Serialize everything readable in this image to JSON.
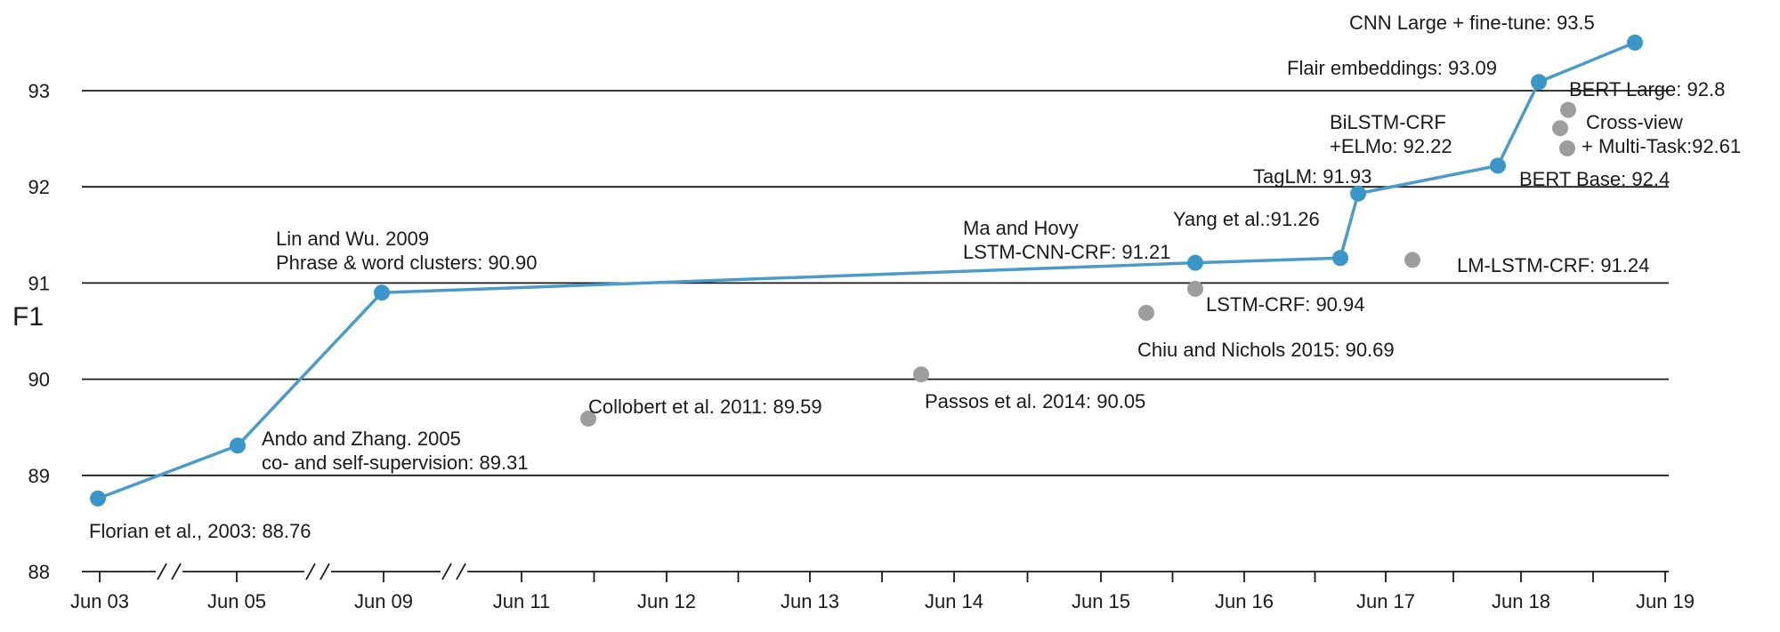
{
  "chart_data": {
    "type": "line",
    "ylabel": "F1",
    "xlabel": "",
    "title": "",
    "ylim": [
      88,
      93.5
    ],
    "yticks": [
      88,
      89,
      90,
      91,
      92,
      93
    ],
    "grid": "horizontal",
    "x_axis_note": "broken axis between Jun 03 and Jun 11",
    "xticks": [
      "Jun 03",
      "Jun 05",
      "Jun 09",
      "Jun 11",
      "Jun 12",
      "Jun 13",
      "Jun 14",
      "Jun 15",
      "Jun 16",
      "Jun 17",
      "Jun 18",
      "Jun 19"
    ],
    "series": [
      {
        "role": "state-of-the-art",
        "color": "#3a96c9",
        "points": [
          {
            "x": "Jun 03",
            "y": 88.76,
            "label": [
              "Florian et al., 2003: 88.76"
            ]
          },
          {
            "x": "Jun 05",
            "y": 89.31,
            "label": [
              "Ando and Zhang. 2005",
              "co- and self-supervision: 89.31"
            ]
          },
          {
            "x": "Jun 09",
            "y": 90.9,
            "label": [
              "Lin and Wu. 2009",
              "Phrase & word clusters: 90.90"
            ]
          },
          {
            "x": "Mar 16",
            "y": 91.21,
            "label": [
              "Ma and Hovy",
              "LSTM-CNN-CRF: 91.21"
            ]
          },
          {
            "x": "Feb 17",
            "y": 91.26,
            "label": [
              "Yang et al.:91.26"
            ]
          },
          {
            "x": "Apr 17",
            "y": 91.93,
            "label": [
              "TagLM: 91.93"
            ]
          },
          {
            "x": "Mar 18",
            "y": 92.22,
            "label": [
              "BiLSTM-CRF",
              "+ELMo: 92.22"
            ]
          },
          {
            "x": "Jun 18",
            "y": 93.09,
            "label": [
              "Flair embeddings: 93.09"
            ]
          },
          {
            "x": "Jan 19",
            "y": 93.5,
            "label": [
              "CNN Large + fine-tune: 93.5"
            ]
          }
        ]
      },
      {
        "role": "other",
        "color": "#9d9d9d",
        "points": [
          {
            "x": "Jul 11",
            "y": 89.59,
            "label": [
              "Collobert et al. 2011: 89.59"
            ]
          },
          {
            "x": "Sep 14",
            "y": 90.05,
            "label": [
              "Passos et al. 2014: 90.05"
            ]
          },
          {
            "x": "Nov 15",
            "y": 90.69,
            "label": [
              "Chiu and Nichols 2015: 90.69"
            ]
          },
          {
            "x": "Mar 16",
            "y": 90.94,
            "label": [
              "LSTM-CRF: 90.94"
            ]
          },
          {
            "x": "Sep 17",
            "y": 91.24,
            "label": [
              "LM-LSTM-CRF: 91.24"
            ]
          },
          {
            "x": "Oct 18",
            "y": 92.61,
            "label": [
              "Cross-view",
              "+ Multi-Task:92.61"
            ]
          },
          {
            "x": "Nov 18",
            "y": 92.4,
            "label": [
              "BERT Base: 92.4"
            ]
          },
          {
            "x": "Nov 18",
            "y": 92.8,
            "label": [
              "BERT Large: 92.8"
            ]
          }
        ]
      }
    ]
  }
}
